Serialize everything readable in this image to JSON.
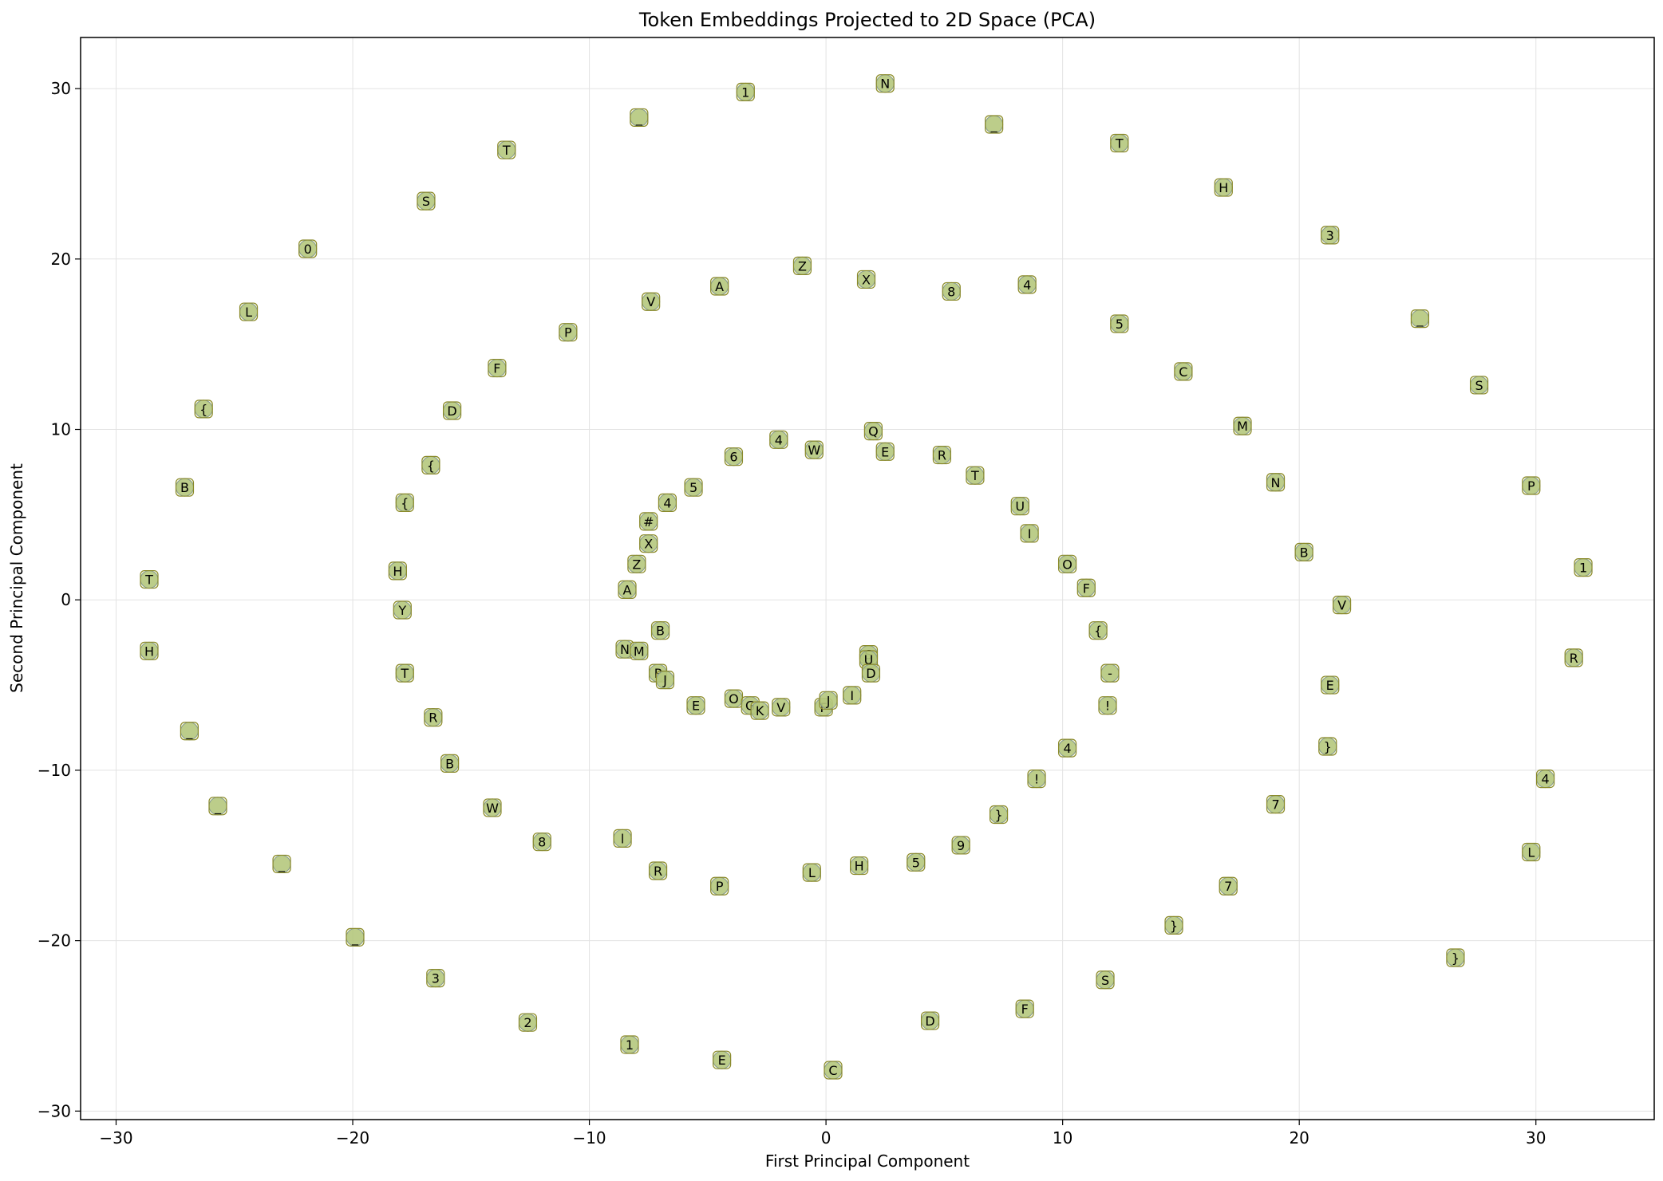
{
  "chart_data": {
    "type": "scatter",
    "title": "Token Embeddings Projected to 2D Space (PCA)",
    "xlabel": "First Principal Component",
    "ylabel": "Second Principal Component",
    "xlim": [
      -31.5,
      35
    ],
    "ylim": [
      -30.5,
      33
    ],
    "xticks": [
      -30,
      -20,
      -10,
      0,
      10,
      20,
      30
    ],
    "yticks": [
      -30,
      -20,
      -10,
      0,
      10,
      20,
      30
    ],
    "grid": true,
    "colors": {
      "marker_fill": "#8fae6b",
      "marker_edge": "#4a6a8a",
      "label_box_fill": "#f2f29a",
      "label_box_edge": "#8a8a2a"
    },
    "points": [
      {
        "x": 2.5,
        "y": 30.3,
        "label": "N"
      },
      {
        "x": -3.4,
        "y": 29.8,
        "label": "1"
      },
      {
        "x": -7.9,
        "y": 28.3,
        "label": "_"
      },
      {
        "x": 7.1,
        "y": 27.9,
        "label": "_"
      },
      {
        "x": 12.4,
        "y": 26.8,
        "label": "T"
      },
      {
        "x": -13.5,
        "y": 26.4,
        "label": "T"
      },
      {
        "x": 16.8,
        "y": 24.2,
        "label": "H"
      },
      {
        "x": -16.9,
        "y": 23.4,
        "label": "S"
      },
      {
        "x": 21.3,
        "y": 21.4,
        "label": "3"
      },
      {
        "x": -21.9,
        "y": 20.6,
        "label": "0"
      },
      {
        "x": -24.4,
        "y": 16.9,
        "label": "L"
      },
      {
        "x": 25.1,
        "y": 16.5,
        "label": "_"
      },
      {
        "x": -26.3,
        "y": 11.2,
        "label": "{"
      },
      {
        "x": 27.6,
        "y": 12.6,
        "label": "S"
      },
      {
        "x": -27.1,
        "y": 6.6,
        "label": "B"
      },
      {
        "x": 29.8,
        "y": 6.7,
        "label": "P"
      },
      {
        "x": -28.6,
        "y": 1.2,
        "label": "T"
      },
      {
        "x": 32.0,
        "y": 1.9,
        "label": "1"
      },
      {
        "x": -28.6,
        "y": -3.0,
        "label": "H"
      },
      {
        "x": 31.6,
        "y": -3.4,
        "label": "R"
      },
      {
        "x": -26.9,
        "y": -7.7,
        "label": "_"
      },
      {
        "x": 30.4,
        "y": -10.5,
        "label": "4"
      },
      {
        "x": -25.7,
        "y": -12.1,
        "label": "_"
      },
      {
        "x": 29.8,
        "y": -14.8,
        "label": "L"
      },
      {
        "x": -23.0,
        "y": -15.5,
        "label": "_"
      },
      {
        "x": 26.6,
        "y": -21.0,
        "label": "}"
      },
      {
        "x": -19.9,
        "y": -19.8,
        "label": "_"
      },
      {
        "x": -16.5,
        "y": -22.2,
        "label": "3"
      },
      {
        "x": -12.6,
        "y": -24.8,
        "label": "2"
      },
      {
        "x": -8.3,
        "y": -26.1,
        "label": "1"
      },
      {
        "x": -4.4,
        "y": -27.0,
        "label": "E"
      },
      {
        "x": 0.3,
        "y": -27.6,
        "label": "C"
      },
      {
        "x": 4.4,
        "y": -24.7,
        "label": "D"
      },
      {
        "x": 8.4,
        "y": -24.0,
        "label": "F"
      },
      {
        "x": 11.8,
        "y": -22.3,
        "label": "S"
      },
      {
        "x": 14.7,
        "y": -19.1,
        "label": "}"
      },
      {
        "x": 17.0,
        "y": -16.8,
        "label": "7"
      },
      {
        "x": 19.0,
        "y": -12.0,
        "label": "7"
      },
      {
        "x": 21.2,
        "y": -8.6,
        "label": "}"
      },
      {
        "x": 21.3,
        "y": -5.0,
        "label": "E"
      },
      {
        "x": 21.8,
        "y": -0.3,
        "label": "V"
      },
      {
        "x": 20.2,
        "y": 2.8,
        "label": "B"
      },
      {
        "x": 19.0,
        "y": 6.9,
        "label": "N"
      },
      {
        "x": 17.6,
        "y": 10.2,
        "label": "M"
      },
      {
        "x": 15.1,
        "y": 13.4,
        "label": "C"
      },
      {
        "x": 12.4,
        "y": 16.2,
        "label": "5"
      },
      {
        "x": 8.5,
        "y": 18.5,
        "label": "4"
      },
      {
        "x": 5.3,
        "y": 18.1,
        "label": "8"
      },
      {
        "x": 1.7,
        "y": 18.8,
        "label": "X"
      },
      {
        "x": -1.0,
        "y": 19.6,
        "label": "Z"
      },
      {
        "x": -4.5,
        "y": 18.4,
        "label": "A"
      },
      {
        "x": -7.4,
        "y": 17.5,
        "label": "V"
      },
      {
        "x": -10.9,
        "y": 15.7,
        "label": "P"
      },
      {
        "x": -13.9,
        "y": 13.6,
        "label": "F"
      },
      {
        "x": -15.8,
        "y": 11.1,
        "label": "D"
      },
      {
        "x": -16.7,
        "y": 7.9,
        "label": "{"
      },
      {
        "x": -17.8,
        "y": 5.7,
        "label": "{"
      },
      {
        "x": -18.1,
        "y": 1.7,
        "label": "H"
      },
      {
        "x": -17.9,
        "y": -0.6,
        "label": "Y"
      },
      {
        "x": -17.8,
        "y": -4.3,
        "label": "T"
      },
      {
        "x": -16.6,
        "y": -6.9,
        "label": "R"
      },
      {
        "x": -15.9,
        "y": -9.6,
        "label": "B"
      },
      {
        "x": -14.1,
        "y": -12.2,
        "label": "W"
      },
      {
        "x": -12.0,
        "y": -14.2,
        "label": "8"
      },
      {
        "x": -8.6,
        "y": -14.0,
        "label": "l"
      },
      {
        "x": -7.1,
        "y": -15.9,
        "label": "R"
      },
      {
        "x": -4.5,
        "y": -16.8,
        "label": "P"
      },
      {
        "x": -0.6,
        "y": -16.0,
        "label": "L"
      },
      {
        "x": 1.4,
        "y": -15.6,
        "label": "H"
      },
      {
        "x": 3.8,
        "y": -15.4,
        "label": "5"
      },
      {
        "x": 5.7,
        "y": -14.4,
        "label": "9"
      },
      {
        "x": 7.3,
        "y": -12.6,
        "label": "}"
      },
      {
        "x": 8.9,
        "y": -10.5,
        "label": "!"
      },
      {
        "x": 10.2,
        "y": -8.7,
        "label": "4"
      },
      {
        "x": 11.9,
        "y": -6.2,
        "label": "!"
      },
      {
        "x": 12.0,
        "y": -4.3,
        "label": "-"
      },
      {
        "x": 11.5,
        "y": -1.8,
        "label": "{"
      },
      {
        "x": 11.0,
        "y": 0.7,
        "label": "F"
      },
      {
        "x": 10.2,
        "y": 2.1,
        "label": "O"
      },
      {
        "x": 8.6,
        "y": 3.9,
        "label": "I"
      },
      {
        "x": 8.2,
        "y": 5.5,
        "label": "U"
      },
      {
        "x": 6.3,
        "y": 7.3,
        "label": "T"
      },
      {
        "x": 4.9,
        "y": 8.5,
        "label": "R"
      },
      {
        "x": 2.5,
        "y": 8.7,
        "label": "E"
      },
      {
        "x": 2.0,
        "y": 9.9,
        "label": "Q"
      },
      {
        "x": -0.5,
        "y": 8.8,
        "label": "W"
      },
      {
        "x": -2.0,
        "y": 9.4,
        "label": "4"
      },
      {
        "x": -3.9,
        "y": 8.4,
        "label": "6"
      },
      {
        "x": -5.6,
        "y": 6.6,
        "label": "5"
      },
      {
        "x": -6.7,
        "y": 5.7,
        "label": "4"
      },
      {
        "x": -7.5,
        "y": 4.6,
        "label": "#"
      },
      {
        "x": -7.5,
        "y": 3.3,
        "label": "X"
      },
      {
        "x": -8.0,
        "y": 2.1,
        "label": "Z"
      },
      {
        "x": -8.4,
        "y": 0.6,
        "label": "A"
      },
      {
        "x": -7.0,
        "y": -1.8,
        "label": "B"
      },
      {
        "x": -8.5,
        "y": -2.9,
        "label": "N"
      },
      {
        "x": -7.9,
        "y": -3.0,
        "label": "M"
      },
      {
        "x": -7.1,
        "y": -4.3,
        "label": "P"
      },
      {
        "x": -6.8,
        "y": -4.7,
        "label": "J"
      },
      {
        "x": -5.5,
        "y": -6.2,
        "label": "E"
      },
      {
        "x": -3.9,
        "y": -5.8,
        "label": "O"
      },
      {
        "x": -3.2,
        "y": -6.2,
        "label": "G"
      },
      {
        "x": -2.8,
        "y": -6.5,
        "label": "K"
      },
      {
        "x": -1.9,
        "y": -6.3,
        "label": "V"
      },
      {
        "x": -0.1,
        "y": -6.3,
        "label": "F"
      },
      {
        "x": 0.1,
        "y": -5.9,
        "label": "J"
      },
      {
        "x": 1.1,
        "y": -5.6,
        "label": "I"
      },
      {
        "x": 1.8,
        "y": -3.2,
        "label": "S"
      },
      {
        "x": 1.8,
        "y": -3.5,
        "label": "U"
      },
      {
        "x": 1.9,
        "y": -4.3,
        "label": "D"
      }
    ]
  }
}
